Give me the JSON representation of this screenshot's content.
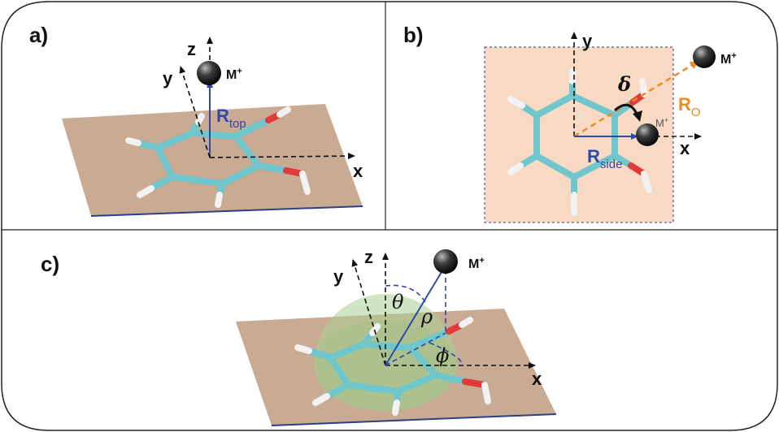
{
  "panels": {
    "a": {
      "label": "a)",
      "axes": {
        "x": "x",
        "y": "y",
        "z": "z"
      },
      "ion": "M",
      "ion_charge": "+",
      "distance": {
        "main": "R",
        "sub": "top"
      }
    },
    "b": {
      "label": "b)",
      "axes": {
        "x": "x",
        "y": "y"
      },
      "ion": "M",
      "ion_charge": "+",
      "angle": "δ",
      "distance_o": {
        "main": "R",
        "sub": "O"
      },
      "distance_side": {
        "main": "R",
        "sub": "side"
      }
    },
    "c": {
      "label": "c)",
      "axes": {
        "x": "x",
        "y": "y",
        "z": "z"
      },
      "ion": "M",
      "ion_charge": "+",
      "theta": "θ",
      "rho": "ρ",
      "phi": "ϕ"
    }
  },
  "colors": {
    "plane": "#c9aa93",
    "plane_edge": "#2d3f86",
    "square": "#f8d9c4",
    "carbon": "#6fc6cc",
    "oxygen": "#e03a3a",
    "hydrogen": "#f2f2f2",
    "vector_blue": "#2e4aa8",
    "vector_orange": "#ef8a22",
    "sphere": "#a8cf94"
  }
}
